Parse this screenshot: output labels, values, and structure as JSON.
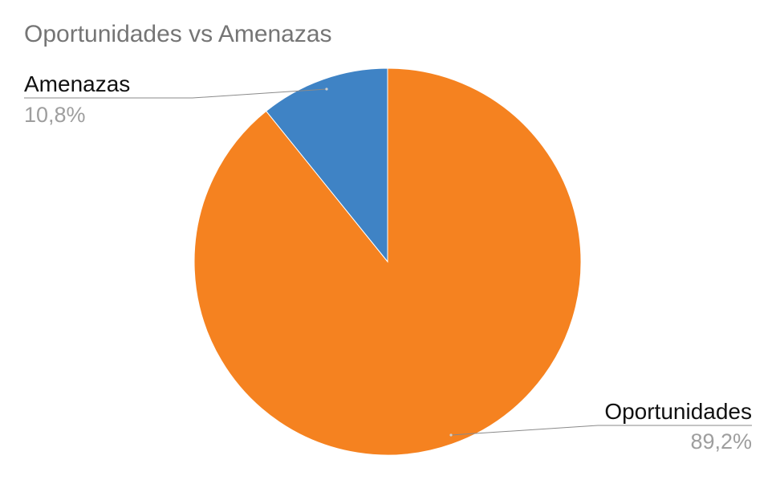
{
  "chart_data": {
    "type": "pie",
    "title": "Oportunidades vs Amenazas",
    "slices": [
      {
        "label": "Oportunidades",
        "value": 89.2,
        "percent_label": "89,2%",
        "color": "#F58220"
      },
      {
        "label": "Amenazas",
        "value": 10.8,
        "percent_label": "10,8%",
        "color": "#3F83C5"
      }
    ],
    "start_angle_deg": 0,
    "direction": "clockwise",
    "legend": "none",
    "data_labels": "outside-with-leader-lines"
  }
}
